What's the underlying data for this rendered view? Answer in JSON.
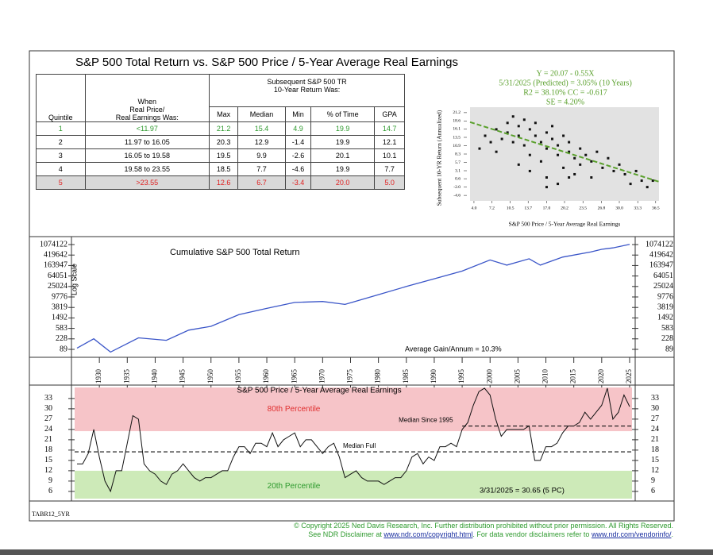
{
  "title": "S&P 500 Total Return vs. S&P 500 Price / 5-Year Average Real Earnings",
  "table": {
    "group_header": [
      "Subsequent S&P 500 TR",
      "10-Year Return Was:"
    ],
    "quintile_header": "Quintile",
    "range_header": [
      "When",
      "Real Price/",
      "Real Earnings Was:"
    ],
    "columns": [
      "Max",
      "Median",
      "Min",
      "% of Time",
      "GPA"
    ],
    "rows": [
      [
        "1",
        "<11.97",
        "21.2",
        "15.4",
        "4.9",
        "19.9",
        "14.7"
      ],
      [
        "2",
        "11.97 to 16.05",
        "20.3",
        "12.9",
        "-1.4",
        "19.9",
        "12.1"
      ],
      [
        "3",
        "16.05 to 19.58",
        "19.5",
        "9.9",
        "-2.6",
        "20.1",
        "10.1"
      ],
      [
        "4",
        "19.58 to 23.55",
        "18.5",
        "7.7",
        "-4.6",
        "19.9",
        "7.7"
      ],
      [
        "5",
        ">23.55",
        "12.6",
        "6.7",
        "-3.4",
        "20.0",
        "5.0"
      ]
    ],
    "row_colors": [
      "#2e9a2e",
      "#000000",
      "#000000",
      "#000000",
      "#e02020"
    ]
  },
  "chart_data": [
    {
      "type": "scatter",
      "equation": [
        "Y = 20.07 - 0.55X",
        "5/31/2025 (Predicted) = 3.05% (10 Years)",
        "R2 = 38.10%  CC = -0.617",
        "SE = 4.20%"
      ],
      "x_label": "S&P 500 Price / 5-Year Average Real Earnings",
      "y_label": "Subsequent 10-YR Return (Annualized)",
      "x": [
        5,
        6,
        7,
        8,
        8,
        9,
        10,
        10,
        11,
        11,
        12,
        12,
        12,
        13,
        13,
        14,
        14,
        14,
        15,
        15,
        16,
        16,
        17,
        17,
        17,
        18,
        18,
        19,
        19,
        20,
        20,
        21,
        21,
        22,
        22,
        23,
        23,
        24,
        25,
        25,
        26,
        27,
        28,
        29,
        30,
        31,
        32,
        33,
        34,
        35,
        36,
        19,
        21,
        17
      ],
      "values": [
        10,
        14,
        12,
        9,
        16,
        13,
        18,
        15,
        20,
        12,
        17,
        14,
        5,
        19,
        11,
        16,
        8,
        3,
        14,
        18,
        12,
        6,
        15,
        10,
        1,
        13,
        17,
        8,
        11,
        14,
        4,
        9,
        12,
        7,
        2,
        10,
        5,
        8,
        6,
        1,
        9,
        4,
        7,
        3,
        5,
        2,
        -1,
        3,
        0,
        -2,
        0,
        -1,
        1,
        -2
      ],
      "color": "#111111",
      "fit": {
        "intercept": 20.07,
        "slope": -0.55,
        "color": "#5aa02c"
      },
      "xlim": [
        3.3,
        37.1
      ],
      "ylim": [
        -6.3,
        22.9
      ],
      "xticks": [
        {
          "value": 4,
          "label": "4.0"
        },
        7.2,
        10.5,
        13.7,
        {
          "value": 17,
          "label": "17.0"
        },
        20.2,
        23.5,
        26.8,
        {
          "value": 30,
          "label": "30.0"
        },
        33.3,
        36.5
      ],
      "yticks": [
        21.2,
        18.6,
        16.1,
        13.5,
        10.9,
        8.3,
        5.7,
        3.1,
        0.6,
        {
          "value": -2,
          "label": "-2.0"
        },
        -4.6
      ]
    },
    {
      "type": "line",
      "title": "Cumulative S&P 500 Total Return",
      "y_label": "Log Scale",
      "log_scale": true,
      "annotation": "Average Gain/Annum = 10.3%",
      "x": [
        1926,
        1929,
        1932,
        1937,
        1942,
        1946,
        1950,
        1955,
        1960,
        1965,
        1970,
        1974,
        1980,
        1985,
        1990,
        1995,
        2000,
        2003,
        2007,
        2009,
        2013,
        2018,
        2020,
        2022,
        2025
      ],
      "series": [
        {
          "color": "#3a55c8",
          "values": [
            100,
            230,
            70,
            250,
            200,
            500,
            700,
            2000,
            3500,
            6000,
            6500,
            5000,
            12000,
            25000,
            50000,
            100000,
            270000,
            170000,
            300000,
            170000,
            350000,
            550000,
            700000,
            800000,
            1100000
          ]
        }
      ],
      "xlim": [
        1925,
        2026
      ],
      "xticks": [
        1930,
        1935,
        1940,
        1945,
        1950,
        1955,
        1960,
        1965,
        1970,
        1975,
        1980,
        1985,
        1990,
        1995,
        2000,
        2005,
        2010,
        2015,
        2020,
        2025
      ],
      "ylim": [
        58,
        1650000
      ],
      "yticks": [
        89,
        228,
        583,
        1492,
        3819,
        9776,
        25024,
        64051,
        163947,
        419642,
        1074122
      ]
    },
    {
      "type": "line",
      "title": "S&P 500 Price / 5-Year Average Real Earnings",
      "annotation": "3/31/2025 = 30.65 (5 PC)",
      "x": [
        1926,
        1927,
        1928,
        1929,
        1930,
        1931,
        1932,
        1933,
        1934,
        1935,
        1936,
        1937,
        1938,
        1939,
        1940,
        1941,
        1942,
        1943,
        1944,
        1945,
        1946,
        1947,
        1948,
        1949,
        1950,
        1951,
        1952,
        1953,
        1954,
        1955,
        1956,
        1957,
        1958,
        1959,
        1960,
        1961,
        1962,
        1963,
        1964,
        1965,
        1966,
        1967,
        1968,
        1969,
        1970,
        1971,
        1972,
        1973,
        1974,
        1975,
        1976,
        1977,
        1978,
        1979,
        1980,
        1981,
        1982,
        1983,
        1984,
        1985,
        1986,
        1987,
        1988,
        1989,
        1990,
        1991,
        1992,
        1993,
        1994,
        1995,
        1996,
        1997,
        1998,
        1999,
        2000,
        2001,
        2002,
        2003,
        2004,
        2005,
        2006,
        2007,
        2008,
        2009,
        2010,
        2011,
        2012,
        2013,
        2014,
        2015,
        2016,
        2017,
        2018,
        2019,
        2020,
        2021,
        2022,
        2023,
        2024,
        2025
      ],
      "series": [
        {
          "color": "#111111",
          "values": [
            14,
            14,
            17,
            24,
            16,
            9,
            6,
            12,
            12,
            20,
            28,
            27,
            14,
            12,
            11,
            9,
            8,
            11,
            12,
            14,
            12,
            10,
            9,
            10,
            10,
            11,
            12,
            12,
            16,
            19,
            19,
            17,
            20,
            20,
            19,
            23,
            19,
            21,
            22,
            23,
            19,
            21,
            21,
            19,
            17,
            19,
            20,
            16,
            10,
            11,
            12,
            10,
            9,
            9,
            9,
            8,
            9,
            10,
            10,
            12,
            16,
            17,
            14,
            16,
            15,
            19,
            19,
            20,
            19,
            24,
            26,
            31,
            35,
            36,
            34,
            27,
            22,
            24,
            24,
            24,
            24,
            25,
            15,
            15,
            19,
            19,
            20,
            23,
            25,
            25,
            26,
            29,
            27,
            29,
            31,
            36,
            27,
            29,
            34,
            30.65
          ]
        }
      ],
      "xlim": [
        1925,
        2026
      ],
      "ylim": [
        3.9,
        36.2
      ],
      "yticks": [
        6,
        9,
        12,
        15,
        18,
        21,
        24,
        27,
        30,
        33
      ],
      "bands": [
        {
          "label": "80th Percentile",
          "from": 23.5,
          "to": 36.2,
          "color": "#f6c4c8",
          "text_color": "#e03030"
        },
        {
          "label": "20th Percentile",
          "from": 3.9,
          "to": 12,
          "color": "#cdeab8",
          "text_color": "#2e9a2e"
        }
      ],
      "reference_lines": [
        {
          "label": "Median Full",
          "value": 17.5
        },
        {
          "label": "Median Since 1995",
          "value": 25,
          "x_from": 1995
        }
      ]
    }
  ],
  "footer": {
    "code": "TABR12_5YR",
    "copyright": "© Copyright 2025 Ned Davis Research, Inc.  Further distribution prohibited without prior permission.  All Rights Reserved.",
    "disclaimer": [
      "See NDR Disclaimer at ",
      "www.ndr.com/copyright.html",
      ". For data vendor disclaimers refer to ",
      "www.ndr.com/vendorinfo/",
      "."
    ]
  }
}
